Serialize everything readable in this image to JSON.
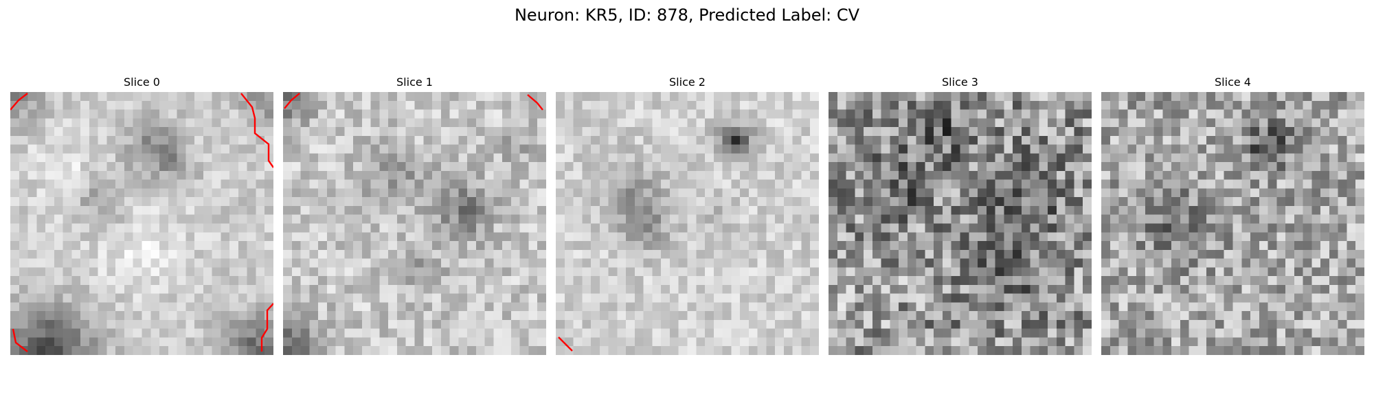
{
  "figure": {
    "title": "Neuron: KR5, ID: 878, Predicted Label: CV"
  },
  "panels": [
    {
      "title": "Slice 0"
    },
    {
      "title": "Slice 1"
    },
    {
      "title": "Slice 2"
    },
    {
      "title": "Slice 3"
    },
    {
      "title": "Slice 4"
    }
  ],
  "colors": {
    "contour": "#ff0000",
    "colormap": "gray"
  }
}
